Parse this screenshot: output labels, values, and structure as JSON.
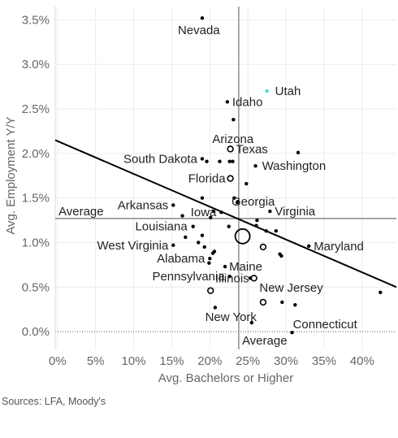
{
  "chart_data": {
    "type": "scatter",
    "xlabel": "Avg. Bachelors or Higher",
    "ylabel": "Avg. Employment Y/Y",
    "xlim": [
      -0.003,
      0.445
    ],
    "ylim": [
      -0.002,
      0.0365
    ],
    "x_ticks": [
      0,
      0.05,
      0.1,
      0.15,
      0.2,
      0.25,
      0.3,
      0.35,
      0.4
    ],
    "x_tick_labels": [
      "0%",
      "5%",
      "10%",
      "15%",
      "20%",
      "25%",
      "30%",
      "35%",
      "40%"
    ],
    "y_ticks": [
      0,
      0.005,
      0.01,
      0.015,
      0.02,
      0.025,
      0.03,
      0.035
    ],
    "y_tick_labels": [
      "0.0%",
      "0.5%",
      "1.0%",
      "1.5%",
      "2.0%",
      "2.5%",
      "3.0%",
      "3.5%"
    ],
    "grid": true,
    "reference_lines": {
      "x_average": 0.238,
      "y_average": 0.0127,
      "y_average_label": "Average",
      "x_average_label": "Average"
    },
    "trend_line": {
      "x": [
        -0.003,
        0.445
      ],
      "y": [
        0.0215,
        0.005
      ]
    },
    "highlight_color": "#40E0D0",
    "labeled_points": [
      {
        "label": "Nevada",
        "x": 0.19,
        "y": 0.0352
      },
      {
        "label": "Utah",
        "x": 0.275,
        "y": 0.027,
        "color": "#40E0D0"
      },
      {
        "label": "Idaho",
        "x": 0.223,
        "y": 0.0258
      },
      {
        "label": "Arizona",
        "x": 0.231,
        "y": 0.0238
      },
      {
        "label": "Texas",
        "x": 0.227,
        "y": 0.0205,
        "size": "small-ring"
      },
      {
        "label": "South Dakota",
        "x": 0.19,
        "y": 0.0194
      },
      {
        "label": "Washington",
        "x": 0.26,
        "y": 0.0186
      },
      {
        "label": "Florida",
        "x": 0.227,
        "y": 0.0172,
        "size": "small-ring"
      },
      {
        "label": "Georgia",
        "x": 0.237,
        "y": 0.0146
      },
      {
        "label": "Arkansas",
        "x": 0.152,
        "y": 0.0142
      },
      {
        "label": "Iowa",
        "x": 0.215,
        "y": 0.0134
      },
      {
        "label": "Virginia",
        "x": 0.279,
        "y": 0.0135
      },
      {
        "label": "Louisiana",
        "x": 0.178,
        "y": 0.0118
      },
      {
        "label": "West Virginia",
        "x": 0.152,
        "y": 0.0097
      },
      {
        "label": "Maryland",
        "x": 0.33,
        "y": 0.0096
      },
      {
        "label": "Alabama",
        "x": 0.2,
        "y": 0.0082
      },
      {
        "label": "Maine",
        "x": 0.22,
        "y": 0.0073
      },
      {
        "label": "Pennsylvania",
        "x": 0.226,
        "y": 0.0062
      },
      {
        "label": "Illinois",
        "x": 0.258,
        "y": 0.006,
        "size": "small-ring"
      },
      {
        "label": "New Jersey",
        "x": 0.295,
        "y": 0.0033
      },
      {
        "label": "New York",
        "x": 0.27,
        "y": 0.0033,
        "size": "small-ring"
      },
      {
        "label": "Connecticut",
        "x": 0.308,
        "y": -0.0001
      }
    ],
    "other_points": [
      {
        "x": 0.243,
        "y": 0.0107,
        "size": "large-ring"
      },
      {
        "x": 0.27,
        "y": 0.0095,
        "size": "small-ring"
      },
      {
        "x": 0.201,
        "y": 0.0046,
        "size": "small-ring"
      },
      {
        "x": 0.316,
        "y": 0.0201
      },
      {
        "x": 0.196,
        "y": 0.0191
      },
      {
        "x": 0.213,
        "y": 0.0191
      },
      {
        "x": 0.226,
        "y": 0.0191
      },
      {
        "x": 0.23,
        "y": 0.0191
      },
      {
        "x": 0.248,
        "y": 0.0166
      },
      {
        "x": 0.19,
        "y": 0.015
      },
      {
        "x": 0.232,
        "y": 0.015
      },
      {
        "x": 0.236,
        "y": 0.0145
      },
      {
        "x": 0.205,
        "y": 0.0135
      },
      {
        "x": 0.164,
        "y": 0.013
      },
      {
        "x": 0.262,
        "y": 0.0125
      },
      {
        "x": 0.201,
        "y": 0.0128
      },
      {
        "x": 0.225,
        "y": 0.0118
      },
      {
        "x": 0.261,
        "y": 0.0119
      },
      {
        "x": 0.274,
        "y": 0.0113
      },
      {
        "x": 0.287,
        "y": 0.0113
      },
      {
        "x": 0.168,
        "y": 0.0106
      },
      {
        "x": 0.19,
        "y": 0.0108
      },
      {
        "x": 0.185,
        "y": 0.01
      },
      {
        "x": 0.193,
        "y": 0.0095
      },
      {
        "x": 0.206,
        "y": 0.009
      },
      {
        "x": 0.292,
        "y": 0.0087
      },
      {
        "x": 0.294,
        "y": 0.0085
      },
      {
        "x": 0.204,
        "y": 0.0088
      },
      {
        "x": 0.199,
        "y": 0.0077
      },
      {
        "x": 0.253,
        "y": 0.006
      },
      {
        "x": 0.312,
        "y": 0.003
      },
      {
        "x": 0.207,
        "y": 0.0027
      },
      {
        "x": 0.424,
        "y": 0.0044
      },
      {
        "x": 0.255,
        "y": 0.001
      }
    ],
    "source": "Sources: LFA, Moody's"
  }
}
